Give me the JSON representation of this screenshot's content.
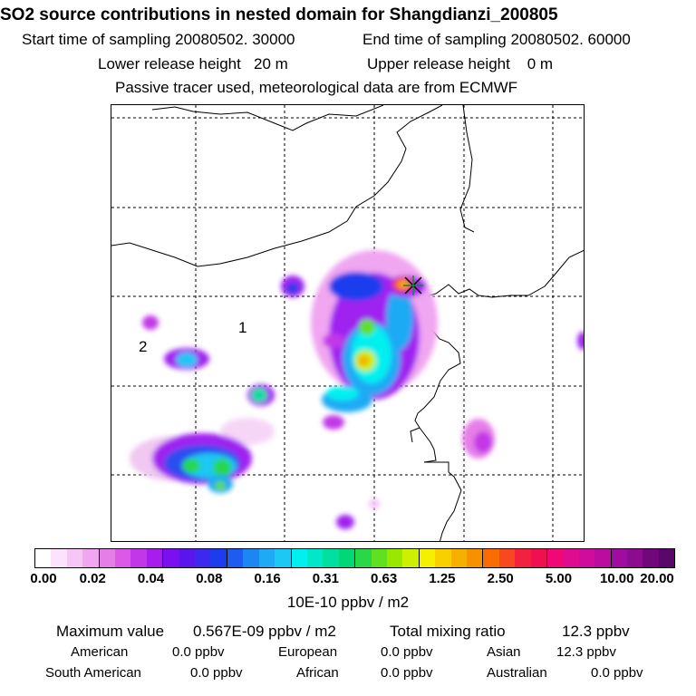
{
  "title": "SO2 source contributions in nested domain for Shangdianzi_200805",
  "sampling": {
    "start": "Start time of sampling 20080502. 30000",
    "end": "End time of sampling 20080502. 60000"
  },
  "release": {
    "lower": "Lower release height   20 m",
    "upper": "Upper release height    0 m"
  },
  "note": "Passive tracer used, meteorological data are from ECMWF",
  "map": {
    "labels": [
      "1",
      "2"
    ],
    "marker": "station-star"
  },
  "colorbar": {
    "ticks": [
      "0.00",
      "0.02",
      "0.04",
      "0.08",
      "0.16",
      "0.31",
      "0.63",
      "1.25",
      "2.50",
      "5.00",
      "10.00",
      "20.00"
    ],
    "unit": "10E-10 ppbv / m2",
    "colors": [
      "#ffffff",
      "#fbe4fb",
      "#f6c6f6",
      "#f0a6f0",
      "#e67ee8",
      "#dc58e6",
      "#c238e8",
      "#a81cee",
      "#7a10f0",
      "#5a14ee",
      "#3c28ee",
      "#1c3cee",
      "#1e5cf0",
      "#1e86f2",
      "#1eaaf4",
      "#1ec8f4",
      "#00f0f0",
      "#00e8c8",
      "#00e0a0",
      "#00d878",
      "#28d848",
      "#60e020",
      "#98e800",
      "#ccf000",
      "#f4f000",
      "#f8d000",
      "#f8b000",
      "#f89000",
      "#f86c00",
      "#f84820",
      "#f42040",
      "#f01050",
      "#f00878",
      "#e00c90",
      "#d00c9c",
      "#bc0ca0",
      "#a00ca0",
      "#8c0c90",
      "#70087c",
      "#580868"
    ]
  },
  "footer": {
    "max_label": "Maximum value",
    "max_value": "0.567E-09 ppbv / m2",
    "total_label": "Total mixing ratio",
    "total_value": "12.3 ppbv",
    "regions": [
      {
        "name": "American",
        "value": "0.0 ppbv"
      },
      {
        "name": "European",
        "value": "0.0 ppbv"
      },
      {
        "name": "Asian",
        "value": "12.3 ppbv"
      },
      {
        "name": "South American",
        "value": "0.0 ppbv"
      },
      {
        "name": "African",
        "value": "0.0 ppbv"
      },
      {
        "name": "Australian",
        "value": "0.0 ppbv"
      }
    ]
  }
}
